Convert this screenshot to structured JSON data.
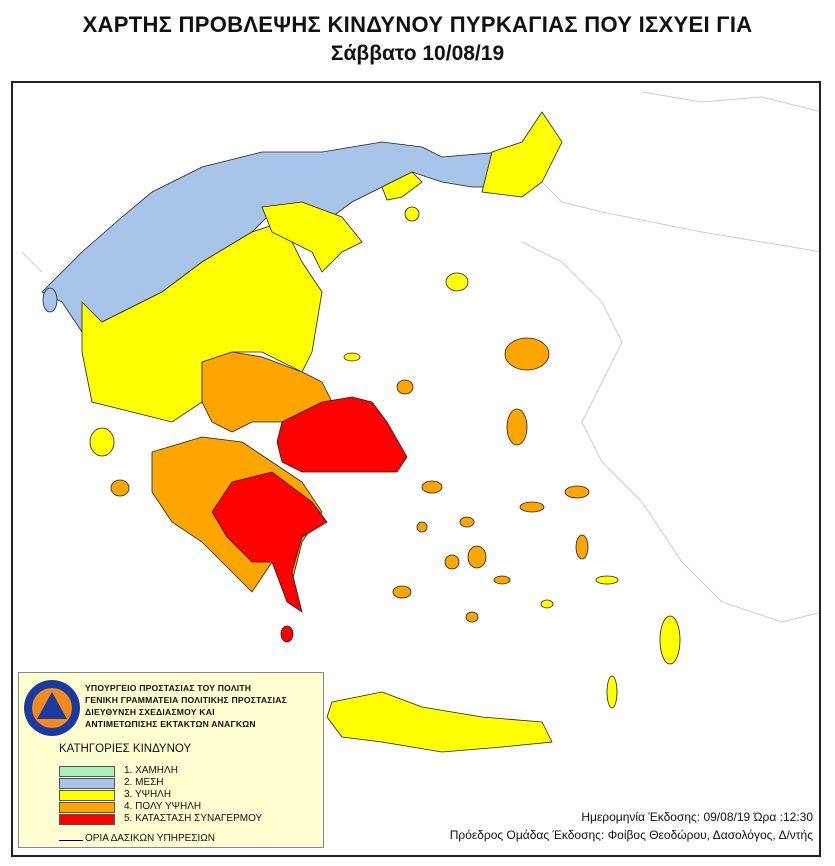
{
  "header": {
    "title": "ΧΑΡΤΗΣ ΠΡΟΒΛΕΨΗΣ ΚΙΝΔΥΝΟΥ ΠΥΡΚΑΓΙΑΣ ΠΟΥ ΙΣΧΥΕΙ ΓΙΑ",
    "subtitle": "Σάββατο 10/08/19"
  },
  "legend": {
    "org_lines": [
      "ΥΠΟΥΡΓΕΙΟ ΠΡΟΣΤΑΣΙΑΣ ΤΟΥ ΠΟΛΙΤΗ",
      "ΓΕΝΙΚΗ ΓΡΑΜΜΑΤΕΙΑ ΠΟΛΙΤΙΚΗΣ ΠΡΟΣΤΑΣΙΑΣ",
      "ΔΙΕΥΘΥΝΣΗ ΣΧΕΔΙΑΣΜΟΥ ΚΑΙ",
      "ΑΝΤΙΜΕΤΩΠΙΣΗΣ ΕΚΤΑΚΤΩΝ ΑΝΑΓΚΩΝ"
    ],
    "logo_text": "ΠΟΛΙΤΙΚΗ ΠΡΟΣΤΑΣΙΑ ΕΛΛΑΔΑ",
    "categories_title": "ΚΑΤΗΓΟΡΙΕΣ ΚΙΝΔΥΝΟΥ",
    "categories": [
      {
        "label": "1. ΧΑΜΗΛΗ",
        "color": "#a8f0b8"
      },
      {
        "label": "2. ΜΕΣΗ",
        "color": "#a8c4e8"
      },
      {
        "label": "3. ΥΨΗΛΗ",
        "color": "#ffff00"
      },
      {
        "label": "4. ΠΟΛΥ ΥΨΗΛΗ",
        "color": "#ffa500"
      },
      {
        "label": "5. ΚΑΤΑΣΤΑΣΗ ΣΥΝΑΓΕΡΜΟΥ",
        "color": "#ff0000"
      }
    ],
    "boundary_label": "ΟΡΙΑ ΔΑΣΙΚΩΝ ΥΠΗΡΕΣΙΩΝ"
  },
  "info": {
    "issue_date": "Ημερομηνία Έκδοσης: 09/08/19  Ώρα :12:30",
    "president": "Πρόεδρος Ομάδας Έκδοσης: Φοίβος Θεοδώρου,  Δασολόγος, Δ/ντής"
  }
}
